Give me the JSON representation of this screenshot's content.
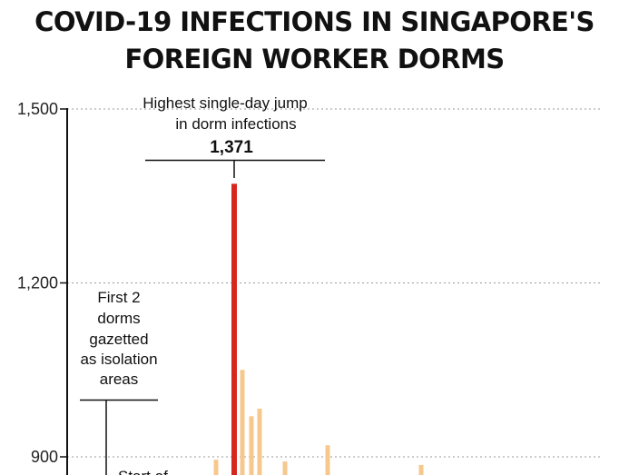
{
  "chart_data": {
    "type": "bar",
    "title_lines": [
      "COVID-19 INFECTIONS IN SINGAPORE'S",
      "FOREIGN WORKER DORMS"
    ],
    "yticks": [
      {
        "value": 1500,
        "label": "1,500"
      },
      {
        "value": 1200,
        "label": "1,200"
      },
      {
        "value": 900,
        "label": "900"
      }
    ],
    "grid": true,
    "visible_y_range": [
      880,
      1500
    ],
    "bars": [
      {
        "value": 895,
        "color": "#f7c88e"
      },
      {
        "value": 1371,
        "color": "#d7261e",
        "highlight": true
      },
      {
        "value": 1050,
        "color": "#f7c88e"
      },
      {
        "value": 970,
        "color": "#f7c88e"
      },
      {
        "value": 983,
        "color": "#f7c88e"
      },
      {
        "value": 892,
        "color": "#f7c88e"
      },
      {
        "value": 920,
        "color": "#f7c88e"
      },
      {
        "value": 886,
        "color": "#f7c88e"
      }
    ],
    "annotations": {
      "peak": {
        "lines": [
          "Highest single-day jump",
          "in dorm infections"
        ],
        "value_label": "1,371"
      },
      "dorms": {
        "lines": [
          "First 2",
          "dorms",
          "gazetted",
          "as isolation",
          "areas"
        ]
      },
      "start": {
        "text": "Start of"
      }
    }
  }
}
